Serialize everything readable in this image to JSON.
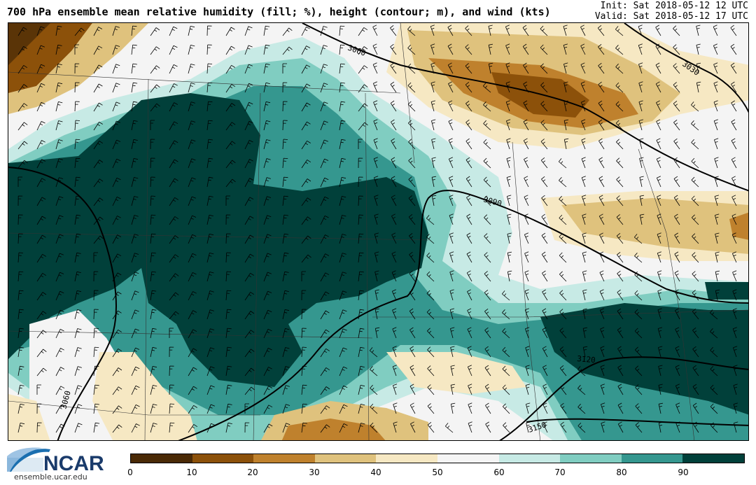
{
  "title": "700 hPa ensemble mean relative humidity (fill; %), height (contour; m), and wind (kts)",
  "init_time": "Init: Sat 2018-05-12 12 UTC",
  "valid_time": "Valid: Sat 2018-05-12 17 UTC",
  "contour_labels": [
    "3060",
    "3030",
    "3090",
    "3060",
    "3120",
    "3150"
  ],
  "colorbar": {
    "ticks": [
      "0",
      "10",
      "20",
      "30",
      "40",
      "50",
      "60",
      "70",
      "80",
      "90"
    ],
    "colors": [
      "#4a2a06",
      "#8c510a",
      "#bf812d",
      "#dfc27d",
      "#f6e8c3",
      "#f5f5f5",
      "#c7eae5",
      "#80cdc1",
      "#35978f",
      "#01403a"
    ]
  },
  "logo": {
    "text": "NCAR",
    "url": "ensemble.ucar.edu"
  }
}
